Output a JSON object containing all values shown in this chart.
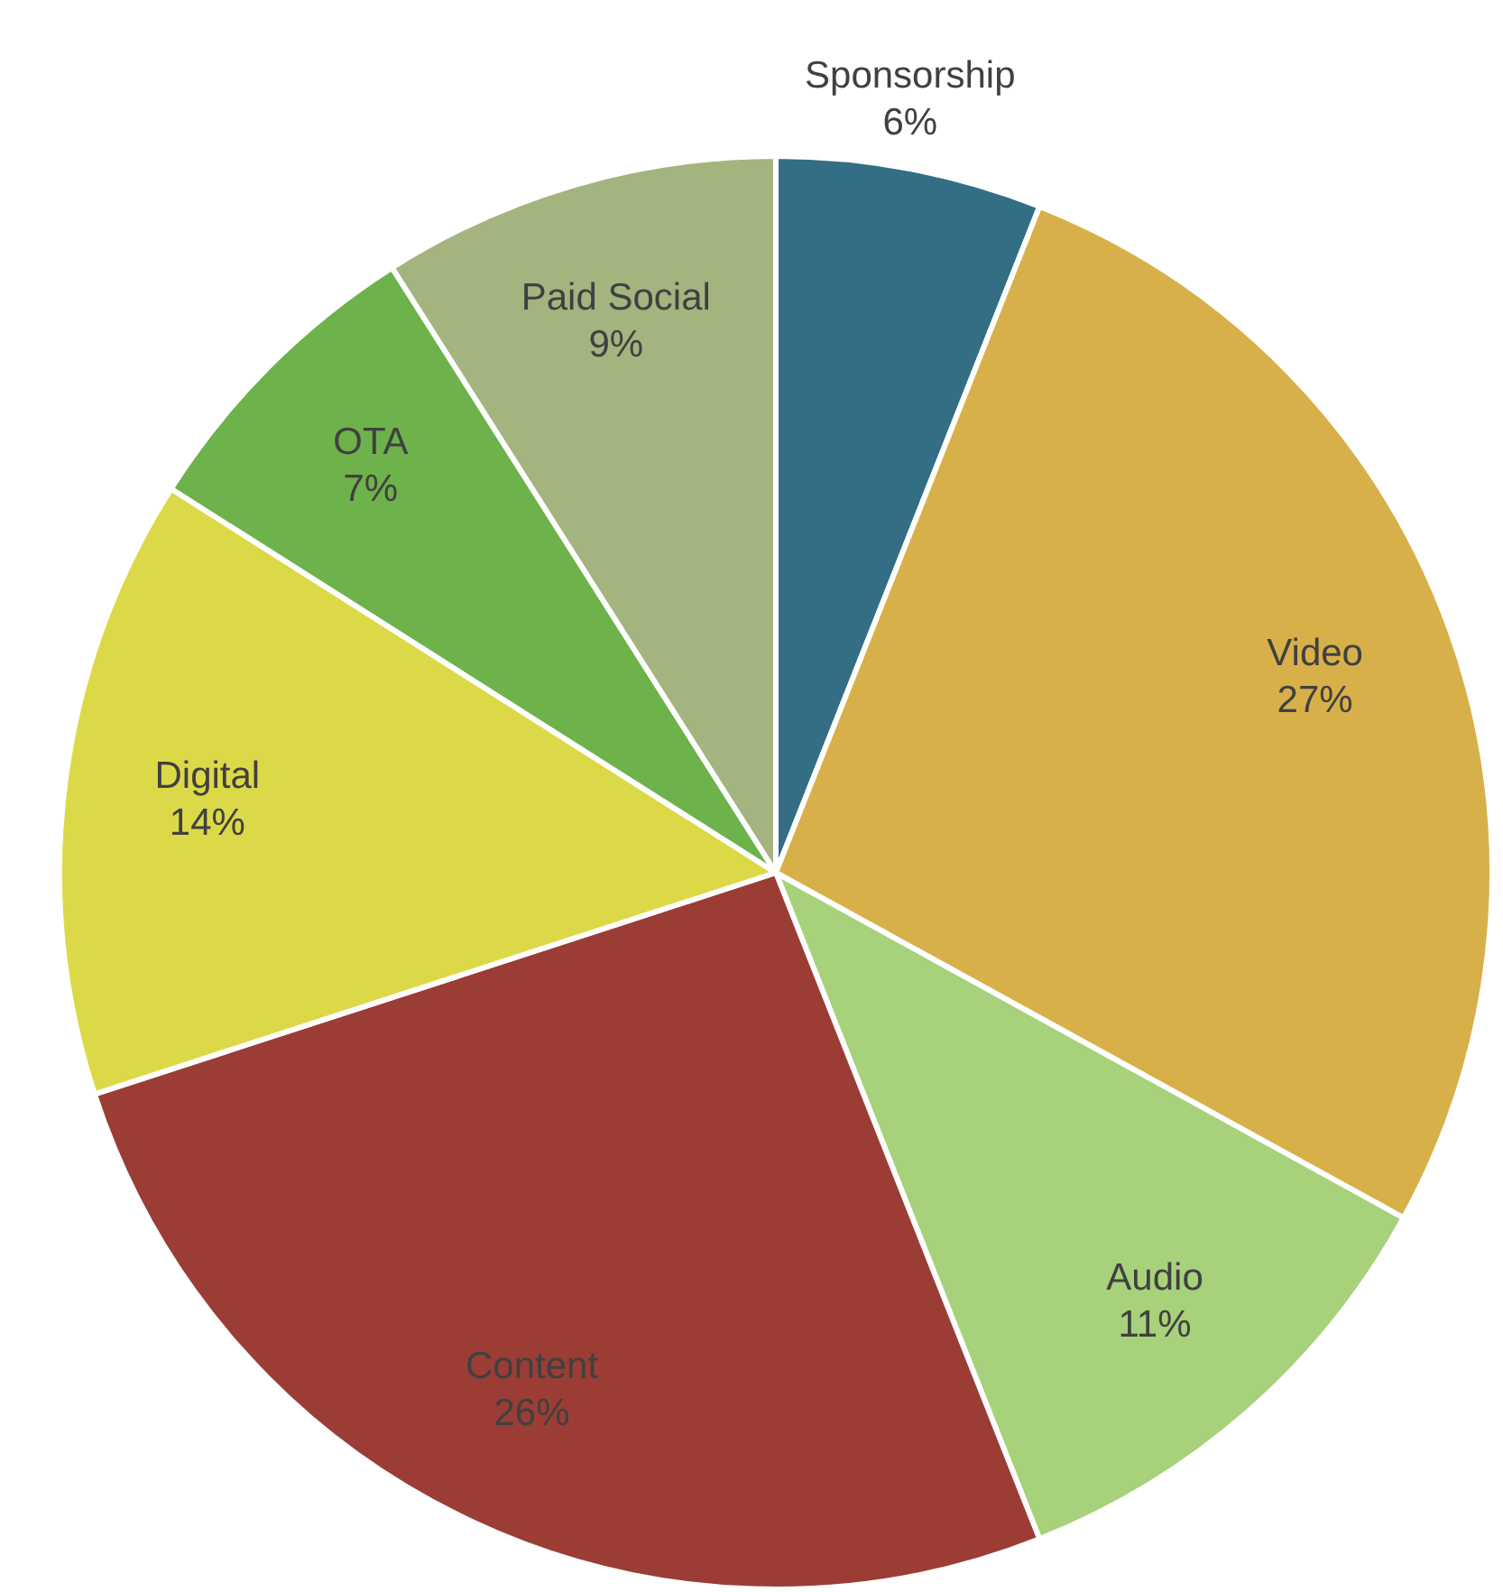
{
  "chart_data": {
    "type": "pie",
    "categories": [
      "Sponsorship",
      "Video",
      "Audio",
      "Content",
      "Digital",
      "OTA",
      "Paid Social"
    ],
    "values": [
      6,
      27,
      11,
      26,
      14,
      7,
      9
    ],
    "value_labels": [
      "6%",
      "27%",
      "11%",
      "26%",
      "14%",
      "7%",
      "9%"
    ],
    "colors": [
      "#336e85",
      "#d8b04a",
      "#a7d17a",
      "#9b3d35",
      "#dcd948",
      "#6db24a",
      "#a3b47f"
    ],
    "legend": false
  }
}
